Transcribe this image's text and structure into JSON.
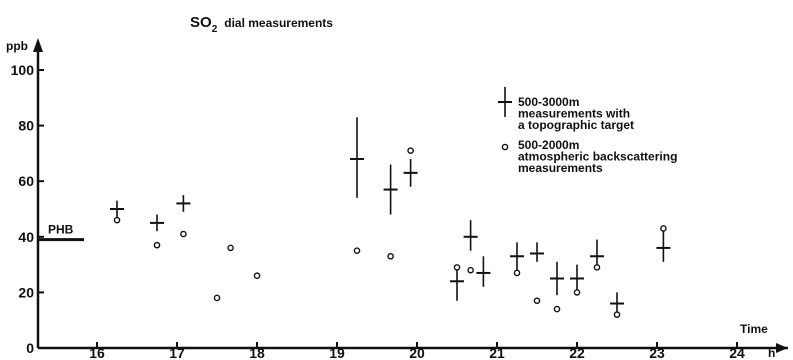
{
  "chart_data": {
    "type": "scatter",
    "title": {
      "main": "SO",
      "subscript": "2",
      "rest": "dial measurements"
    },
    "ylabel": "ppb",
    "xlabel": "Time",
    "x_unit": "h",
    "xlim": [
      15.3,
      24.4
    ],
    "ylim": [
      0,
      105
    ],
    "x_ticks": [
      16,
      17,
      18,
      19,
      20,
      21,
      22,
      23,
      24
    ],
    "y_ticks": [
      0,
      20,
      40,
      60,
      80,
      100
    ],
    "grid": false,
    "legend_position": "top-right",
    "reference_line": {
      "label": "PHB",
      "y": 39
    },
    "series": [
      {
        "name": "500-3000m measurements with a topographic target",
        "legend_lines": [
          "500-3000m",
          "measurements with",
          "a topographic target"
        ],
        "marker": "cross-errorbar",
        "points": [
          {
            "x": 16.25,
            "y": 50,
            "ylow": 47,
            "yhigh": 53
          },
          {
            "x": 16.75,
            "y": 45,
            "ylow": 42,
            "yhigh": 48
          },
          {
            "x": 17.08,
            "y": 52,
            "ylow": 49,
            "yhigh": 55
          },
          {
            "x": 19.25,
            "y": 68,
            "ylow": 54,
            "yhigh": 83
          },
          {
            "x": 19.67,
            "y": 57,
            "ylow": 48,
            "yhigh": 66
          },
          {
            "x": 19.92,
            "y": 63,
            "ylow": 58,
            "yhigh": 68
          },
          {
            "x": 20.5,
            "y": 24,
            "ylow": 17,
            "yhigh": 30
          },
          {
            "x": 20.67,
            "y": 40,
            "ylow": 35,
            "yhigh": 46
          },
          {
            "x": 20.83,
            "y": 27,
            "ylow": 22,
            "yhigh": 33
          },
          {
            "x": 21.25,
            "y": 33,
            "ylow": 28,
            "yhigh": 38
          },
          {
            "x": 21.5,
            "y": 34,
            "ylow": 31,
            "yhigh": 38
          },
          {
            "x": 21.75,
            "y": 25,
            "ylow": 19,
            "yhigh": 31
          },
          {
            "x": 22.0,
            "y": 25,
            "ylow": 21,
            "yhigh": 30
          },
          {
            "x": 22.25,
            "y": 33,
            "ylow": 29,
            "yhigh": 39
          },
          {
            "x": 22.5,
            "y": 16,
            "ylow": 12,
            "yhigh": 20
          },
          {
            "x": 23.08,
            "y": 36,
            "ylow": 31,
            "yhigh": 42
          }
        ]
      },
      {
        "name": "500-2000m atmospheric backscattering measurements",
        "legend_lines": [
          "500-2000m",
          "atmospheric backscattering",
          "measurements"
        ],
        "marker": "circle",
        "points": [
          {
            "x": 16.25,
            "y": 46
          },
          {
            "x": 16.75,
            "y": 37
          },
          {
            "x": 17.08,
            "y": 41
          },
          {
            "x": 17.5,
            "y": 18
          },
          {
            "x": 17.67,
            "y": 36
          },
          {
            "x": 18.0,
            "y": 26
          },
          {
            "x": 19.25,
            "y": 35
          },
          {
            "x": 19.67,
            "y": 33
          },
          {
            "x": 19.92,
            "y": 71
          },
          {
            "x": 20.5,
            "y": 29
          },
          {
            "x": 20.67,
            "y": 28
          },
          {
            "x": 21.25,
            "y": 27
          },
          {
            "x": 21.5,
            "y": 17
          },
          {
            "x": 21.75,
            "y": 14
          },
          {
            "x": 22.0,
            "y": 20
          },
          {
            "x": 22.25,
            "y": 29
          },
          {
            "x": 22.5,
            "y": 12
          },
          {
            "x": 23.08,
            "y": 43
          }
        ]
      }
    ]
  }
}
